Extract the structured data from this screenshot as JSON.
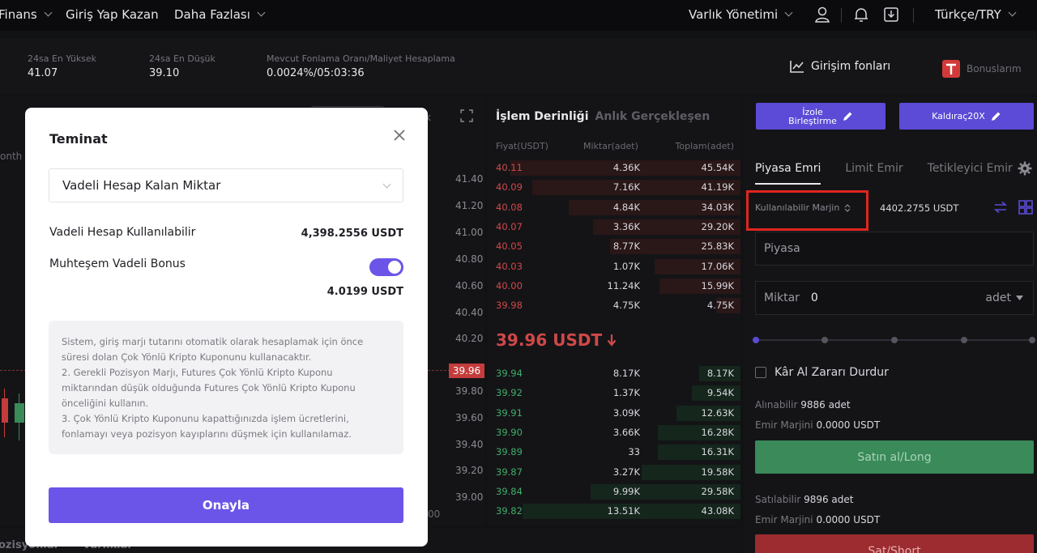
{
  "nav": {
    "items": [
      "Finans",
      "Giriş Yap Kazan",
      "Daha Fazlası"
    ],
    "asset_management": "Varlık Yönetimi",
    "language": "Türkçe/TRY"
  },
  "ticker": {
    "stats": [
      {
        "label": "24sa En Yüksek",
        "value": "41.07"
      },
      {
        "label": "24sa En Düşük",
        "value": "39.10"
      },
      {
        "label": "Mevcut Fonlama Oranı/Maliyet Hesaplama",
        "value": "0.0024%/05:03:36"
      }
    ],
    "venture_funds": "Girişim fonları",
    "bonuses": "Bonuslarım"
  },
  "chart": {
    "label_fragment": "onth",
    "tab_fragment": "k",
    "price_axis": [
      "41.40",
      "41.20",
      "41.00",
      "40.80",
      "40.60",
      "40.40",
      "40.20",
      "39.80",
      "39.60",
      "39.40",
      "39.20",
      "39.00"
    ],
    "current_price": "39.96",
    "bottom_fragment": "00"
  },
  "orderbook": {
    "tab_depth": "İşlem Derinliği",
    "tab_trades": "Anlık Gerçekleşen",
    "col_price": "Fiyat(USDT)",
    "col_qty": "Miktar(adet)",
    "col_total": "Toplam(adet)",
    "asks": [
      {
        "price": "40.11",
        "qty": "4.36K",
        "total": "45.54K"
      },
      {
        "price": "40.09",
        "qty": "7.16K",
        "total": "41.19K"
      },
      {
        "price": "40.08",
        "qty": "4.84K",
        "total": "34.03K"
      },
      {
        "price": "40.07",
        "qty": "3.36K",
        "total": "29.20K"
      },
      {
        "price": "40.05",
        "qty": "8.77K",
        "total": "25.83K"
      },
      {
        "price": "40.03",
        "qty": "1.07K",
        "total": "17.06K"
      },
      {
        "price": "40.00",
        "qty": "11.24K",
        "total": "15.99K"
      },
      {
        "price": "39.98",
        "qty": "4.75K",
        "total": "4.75K"
      }
    ],
    "last_price": "39.96 USDT",
    "bids": [
      {
        "price": "39.94",
        "qty": "8.17K",
        "total": "8.17K"
      },
      {
        "price": "39.92",
        "qty": "1.37K",
        "total": "9.54K"
      },
      {
        "price": "39.91",
        "qty": "3.09K",
        "total": "12.63K"
      },
      {
        "price": "39.90",
        "qty": "3.66K",
        "total": "16.28K"
      },
      {
        "price": "39.89",
        "qty": "33",
        "total": "16.31K"
      },
      {
        "price": "39.87",
        "qty": "3.27K",
        "total": "19.58K"
      },
      {
        "price": "39.84",
        "qty": "9.99K",
        "total": "29.58K"
      },
      {
        "price": "39.82",
        "qty": "13.51K",
        "total": "43.08K"
      }
    ]
  },
  "trade": {
    "margin_mode_line1": "İzole",
    "margin_mode_line2": "Birleştirme",
    "leverage": "Kaldıraç20X",
    "tabs": [
      "Piyasa Emri",
      "Limit Emir",
      "Tetikleyici Emir"
    ],
    "available_margin_label": "Kullanılabilir Marjin",
    "available_margin_value": "4402.2755 USDT",
    "market_placeholder": "Piyasa",
    "amount_label": "Miktar",
    "amount_value": "0",
    "amount_unit": "adet",
    "tp_sl_label": "Kâr Al Zararı Durdur",
    "buyable_label": "Alınabilir",
    "buyable_value": "9886 adet",
    "buy_margin_label": "Emir Marjini",
    "buy_margin_value": "0.0000 USDT",
    "buy_button": "Satın al/Long",
    "sellable_label": "Satılabilir",
    "sellable_value": "9896 adet",
    "sell_margin_label": "Emir Marjini",
    "sell_margin_value": "0.0000 USDT",
    "sell_button": "Sat/Short"
  },
  "bottom_tabs": [
    "ozisyonlar",
    "Varlıklar"
  ],
  "modal": {
    "title": "Teminat",
    "select_value": "Vadeli Hesap Kalan Miktar",
    "available_label": "Vadeli Hesap Kullanılabilir",
    "available_value": "4,398.2556 USDT",
    "bonus_label": "Muhteşem Vadeli Bonus",
    "bonus_enabled": true,
    "bonus_value": "4.0199 USDT",
    "notice_lines": [
      "Sistem, giriş marjı tutarını otomatik olarak hesaplamak için önce",
      "süresi dolan Çok Yönlü Kripto Kuponunu kullanacaktır.",
      "2. Gerekli Pozisyon Marjı, Futures Çok Yönlü Kripto Kuponu",
      "miktarından düşük olduğunda Futures Çok Yönlü Kripto Kuponu",
      "önceliğini kullanın.",
      "3. Çok Yönlü Kripto Kuponunu kapattığınızda işlem ücretlerini,",
      "fonlamayı veya pozisyon kayıplarını düşmek için kullanılamaz."
    ],
    "confirm_button": "Onayla"
  },
  "colors": {
    "accent": "#6a55e8",
    "sell": "#d04848",
    "buy": "#3fae6a",
    "highlight": "#e0261e"
  }
}
